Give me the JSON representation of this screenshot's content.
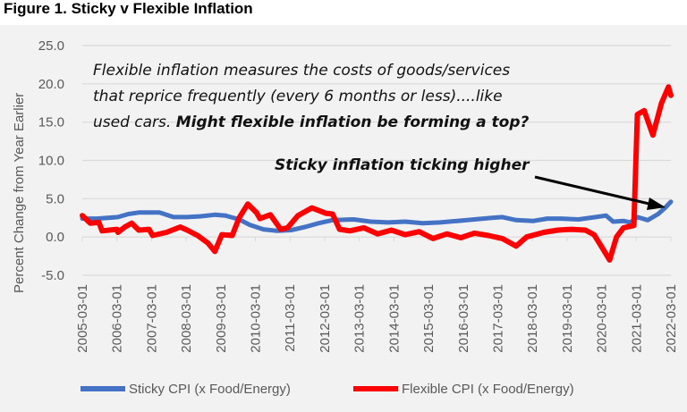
{
  "title": "Figure 1. Sticky v Flexible Inflation",
  "chart_data": {
    "type": "line",
    "ylabel": "Percent Change from Year Earlier",
    "xlabel": "",
    "ylim": [
      -5,
      25
    ],
    "yticks": [
      "25.0",
      "20.0",
      "15.0",
      "10.0",
      "5.0",
      "0.0",
      "-5.0"
    ],
    "xticks": [
      "2005-03-01",
      "2006-03-01",
      "2007-03-01",
      "2008-03-01",
      "2009-03-01",
      "2010-03-01",
      "2011-03-01",
      "2012-03-01",
      "2013-03-01",
      "2014-03-01",
      "2015-03-01",
      "2016-03-01",
      "2017-03-01",
      "2018-03-01",
      "2019-03-01",
      "2020-03-01",
      "2021-03-01",
      "2022-03-01"
    ],
    "grid": true,
    "legend": "bottom",
    "annotations": {
      "line1": "Flexible inflation measures the costs of goods/services",
      "line2": "that reprice frequently (every 6 months or less)....like",
      "line3_plain": "used cars. ",
      "line3_bold": "Might flexible inflation be forming a top?",
      "arrow_text": "Sticky inflation ticking higher"
    },
    "series": [
      {
        "name": "Sticky CPI (x Food/Energy)",
        "color": "#4472c4",
        "x": [
          2005.17,
          2005.6,
          2006.2,
          2006.5,
          2006.8,
          2007.4,
          2007.8,
          2008.2,
          2008.6,
          2009.0,
          2009.3,
          2009.7,
          2010.0,
          2010.4,
          2010.8,
          2011.2,
          2011.6,
          2012.0,
          2012.4,
          2013.0,
          2013.5,
          2014.0,
          2014.5,
          2015.0,
          2015.5,
          2016.0,
          2016.5,
          2017.0,
          2017.3,
          2017.7,
          2018.2,
          2018.6,
          2019.0,
          2019.5,
          2020.0,
          2020.3,
          2020.5,
          2020.8,
          2021.0,
          2021.2,
          2021.5,
          2021.8,
          2022.0,
          2022.17
        ],
        "values": [
          2.4,
          2.4,
          2.6,
          3.0,
          3.2,
          3.2,
          2.6,
          2.6,
          2.7,
          2.9,
          2.8,
          2.3,
          1.6,
          1.0,
          0.8,
          0.9,
          1.3,
          1.8,
          2.2,
          2.3,
          2.0,
          1.9,
          2.0,
          1.8,
          1.9,
          2.1,
          2.3,
          2.5,
          2.6,
          2.2,
          2.1,
          2.4,
          2.4,
          2.3,
          2.6,
          2.8,
          2.0,
          2.1,
          1.9,
          2.6,
          2.2,
          3.0,
          3.8,
          4.6
        ]
      },
      {
        "name": "Flexible CPI (x Food/Energy)",
        "color": "#ff0000",
        "x": [
          2005.17,
          2005.4,
          2005.65,
          2005.74,
          2006.17,
          2006.2,
          2006.4,
          2006.6,
          2006.8,
          2007.1,
          2007.2,
          2007.6,
          2008.0,
          2008.2,
          2008.5,
          2008.8,
          2009.0,
          2009.2,
          2009.5,
          2009.7,
          2009.95,
          2010.2,
          2010.3,
          2010.6,
          2010.9,
          2011.1,
          2011.4,
          2011.8,
          2012.2,
          2012.4,
          2012.6,
          2012.9,
          2013.3,
          2013.7,
          2014.1,
          2014.5,
          2014.9,
          2015.3,
          2015.7,
          2016.1,
          2016.5,
          2016.9,
          2017.3,
          2017.7,
          2018.0,
          2018.5,
          2018.9,
          2019.3,
          2019.7,
          2019.95,
          2020.2,
          2020.4,
          2020.6,
          2020.8,
          2021.1,
          2021.2,
          2021.4,
          2021.65,
          2021.9,
          2022.1,
          2022.17
        ],
        "values": [
          2.8,
          1.8,
          1.9,
          0.8,
          1.0,
          0.6,
          1.3,
          1.8,
          0.9,
          1.0,
          0.2,
          0.6,
          1.3,
          0.9,
          0.2,
          -0.8,
          -1.9,
          0.3,
          0.2,
          2.5,
          4.3,
          3.2,
          2.4,
          2.9,
          1.0,
          1.2,
          2.8,
          3.8,
          3.1,
          3.0,
          1.0,
          0.8,
          1.2,
          0.4,
          0.9,
          0.3,
          0.7,
          -0.2,
          0.4,
          -0.1,
          0.5,
          0.2,
          -0.2,
          -1.2,
          0.0,
          0.6,
          0.9,
          1.0,
          0.9,
          0.3,
          -1.5,
          -3.0,
          0.0,
          1.2,
          1.5,
          16.0,
          16.5,
          13.3,
          17.5,
          19.6,
          18.5
        ]
      }
    ]
  }
}
